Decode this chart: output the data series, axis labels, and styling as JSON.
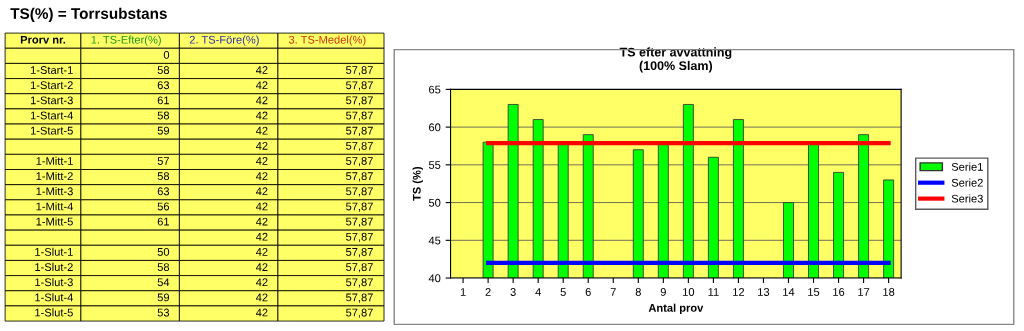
{
  "chart_data": [
    {
      "type": "other",
      "title": "TS(%) = Torrsubstans",
      "categories": [
        "Prorv nr.",
        "1. TS-Efter(%)",
        "2. TS-Före(%)",
        "3. TS-Medel(%)"
      ],
      "y_categories": [
        null,
        "1-Start-1",
        "1-Start-2",
        "1-Start-3",
        "1-Start-4",
        "1-Start-5",
        null,
        "1-Mitt-1",
        "1-Mitt-2",
        "1-Mitt-3",
        "1-Mitt-4",
        "1-Mitt-5",
        null,
        "1-Slut-1",
        "1-Slut-2",
        "1-Slut-3",
        "1-Slut-4",
        "1-Slut-5"
      ],
      "cell_labels": [
        [
          "0",
          null,
          null
        ],
        [
          "58",
          "42",
          "57,87"
        ],
        [
          "63",
          "42",
          "57,87"
        ],
        [
          "61",
          "42",
          "57,87"
        ],
        [
          "58",
          "42",
          "57,87"
        ],
        [
          "59",
          "42",
          "57,87"
        ],
        [
          null,
          "42",
          "57,87"
        ],
        [
          "57",
          "42",
          "57,87"
        ],
        [
          "58",
          "42",
          "57,87"
        ],
        [
          "63",
          "42",
          "57,87"
        ],
        [
          "56",
          "42",
          "57,87"
        ],
        [
          "61",
          "42",
          "57,87"
        ],
        [
          null,
          "42",
          "57,87"
        ],
        [
          "50",
          "42",
          "57,87"
        ],
        [
          "58",
          "42",
          "57,87"
        ],
        [
          "54",
          "42",
          "57,87"
        ],
        [
          "59",
          "42",
          "57,87"
        ],
        [
          "53",
          "42",
          "57,87"
        ]
      ]
    },
    {
      "type": "bar",
      "title": "TS efter avvattning",
      "subtitle": "(100% Slam)",
      "xlabel": "Antal prov",
      "ylabel": "TS (%)",
      "categories": [
        "1",
        "2",
        "3",
        "4",
        "5",
        "6",
        "7",
        "8",
        "9",
        "10",
        "11",
        "12",
        "13",
        "14",
        "15",
        "16",
        "17",
        "18"
      ],
      "series": [
        {
          "name": "Serie1",
          "type": "bar",
          "color": "#00ff00",
          "values": [
            null,
            58,
            63,
            61,
            58,
            59,
            null,
            57,
            58,
            63,
            56,
            61,
            null,
            50,
            58,
            54,
            59,
            53
          ]
        },
        {
          "name": "Serie2",
          "type": "line",
          "color": "#0000ff",
          "values": [
            null,
            42,
            42,
            42,
            42,
            42,
            42,
            42,
            42,
            42,
            42,
            42,
            42,
            42,
            42,
            42,
            42,
            42
          ]
        },
        {
          "name": "Serie3",
          "type": "line",
          "color": "#ff0000",
          "values": [
            null,
            57.87,
            57.87,
            57.87,
            57.87,
            57.87,
            57.87,
            57.87,
            57.87,
            57.87,
            57.87,
            57.87,
            57.87,
            57.87,
            57.87,
            57.87,
            57.87,
            57.87
          ]
        }
      ],
      "ylim": [
        40,
        65
      ],
      "yticks": [
        40,
        45,
        50,
        55,
        60,
        65
      ],
      "grid": "y",
      "legend": "right",
      "marker": "none",
      "line_style": "solid"
    }
  ]
}
